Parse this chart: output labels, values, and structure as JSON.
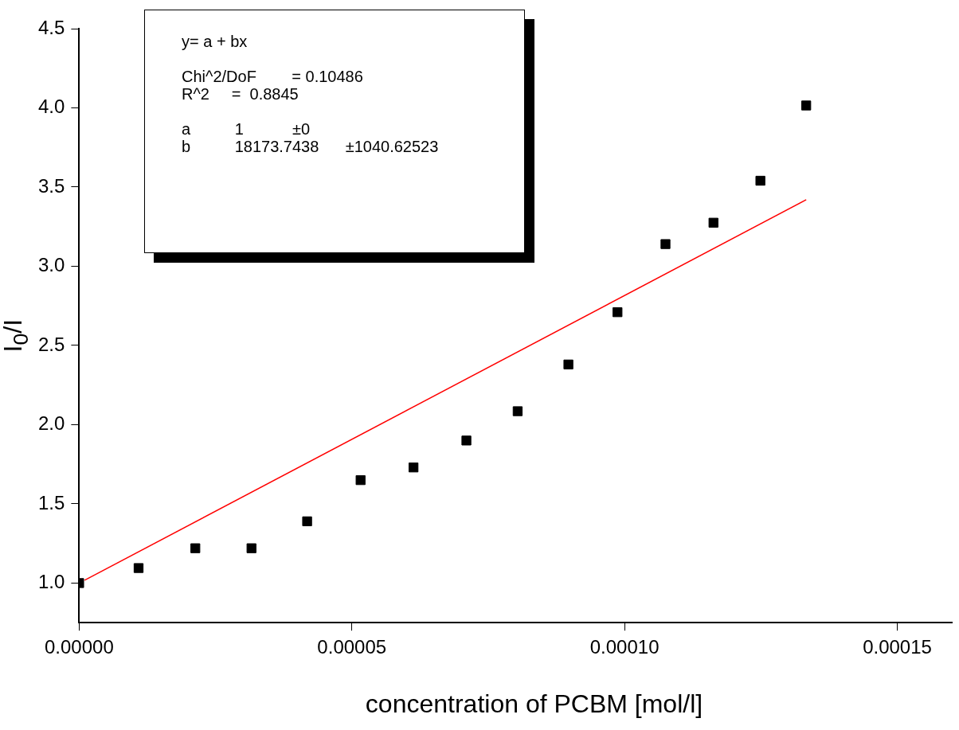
{
  "chart_data": {
    "type": "scatter",
    "xlabel": "concentration of PCBM [mol/l]",
    "ylabel": "I$_{0}$/I",
    "xlim": [
      0,
      0.00016
    ],
    "ylim": [
      0.75,
      4.5
    ],
    "xticks": [
      {
        "value": 0,
        "label": "0.00000"
      },
      {
        "value": 5e-05,
        "label": "0.00005"
      },
      {
        "value": 0.0001,
        "label": "0.00010"
      },
      {
        "value": 0.00015,
        "label": "0.00015"
      }
    ],
    "yticks": [
      {
        "value": 1,
        "label": "1.0"
      },
      {
        "value": 1.5,
        "label": "1.5"
      },
      {
        "value": 2,
        "label": "2.0"
      },
      {
        "value": 2.5,
        "label": "2.5"
      },
      {
        "value": 3,
        "label": "3.0"
      },
      {
        "value": 3.5,
        "label": "3.5"
      },
      {
        "value": 4,
        "label": "4.0"
      },
      {
        "value": 4.5,
        "label": "4.5"
      }
    ],
    "grid": false,
    "legend": false,
    "series": [
      {
        "type": "scatter",
        "color": "#000000",
        "marker": "square",
        "x": [
          0,
          1.09e-05,
          2.13e-05,
          3.16e-05,
          4.18e-05,
          5.16e-05,
          6.13e-05,
          7.1e-05,
          8.04e-05,
          8.97e-05,
          9.87e-05,
          0.0001075,
          0.0001163,
          0.0001249,
          0.0001333
        ],
        "values": [
          1.0,
          1.095,
          1.22,
          1.22,
          1.39,
          1.65,
          1.73,
          1.9,
          2.085,
          2.38,
          2.71,
          3.14,
          3.275,
          3.54,
          4.015
        ]
      },
      {
        "type": "line",
        "color": "#ff0000",
        "marker": "none",
        "line_style": "solid",
        "x": [
          1e-06,
          0.0001333
        ],
        "values": [
          1.018,
          3.42
        ]
      }
    ],
    "annotations": [
      "y= a + bx",
      "Chi^2/DoF        = 0.10486",
      "R^2     =  0.8845",
      "a          1           ±0",
      "b          18173.7438      ±1040.62523"
    ]
  }
}
